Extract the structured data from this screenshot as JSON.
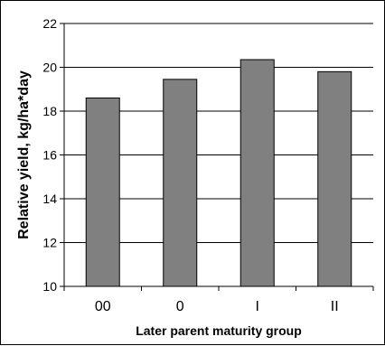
{
  "chart_data": {
    "type": "bar",
    "categories": [
      "00",
      "0",
      "I",
      "II"
    ],
    "values": [
      18.6,
      19.45,
      20.35,
      19.8
    ],
    "xlabel": "Later parent maturity group",
    "ylabel": "Relative yield, kg/ha*day",
    "ylim": [
      10,
      22
    ],
    "yticks": [
      10,
      12,
      14,
      16,
      18,
      20,
      22
    ],
    "grid": true,
    "legend": "none",
    "colors": {
      "bar": "#808080",
      "bar_edge": "#000000",
      "grid": "#000000",
      "plot_background": "#ffffff"
    }
  }
}
